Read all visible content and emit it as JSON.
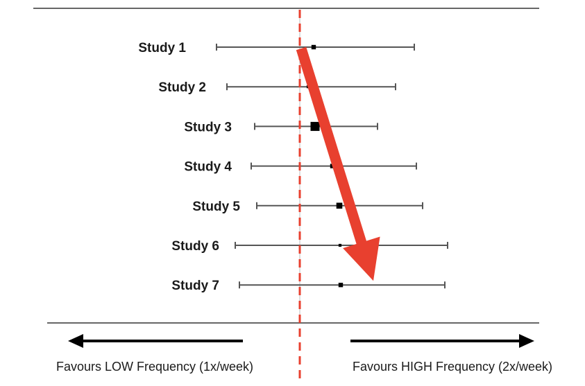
{
  "chart_data": {
    "type": "forest",
    "x_range": [
      -1.42,
      1.98
    ],
    "null_line_value": 0,
    "studies": [
      {
        "label": "Study 1",
        "estimate": 0.2,
        "ci_low": -1.2,
        "ci_high": 1.65,
        "marker_size": 2
      },
      {
        "label": "Study 2",
        "estimate": 0.12,
        "ci_low": -1.05,
        "ci_high": 1.38,
        "marker_size": 1
      },
      {
        "label": "Study 3",
        "estimate": 0.22,
        "ci_low": -0.65,
        "ci_high": 1.12,
        "marker_size": 5
      },
      {
        "label": "Study 4",
        "estimate": 0.47,
        "ci_low": -0.7,
        "ci_high": 1.68,
        "marker_size": 2
      },
      {
        "label": "Study 5",
        "estimate": 0.57,
        "ci_low": -0.62,
        "ci_high": 1.77,
        "marker_size": 3
      },
      {
        "label": "Study 6",
        "estimate": 0.58,
        "ci_low": -0.93,
        "ci_high": 2.13,
        "marker_size": 1
      },
      {
        "label": "Study 7",
        "estimate": 0.59,
        "ci_low": -0.87,
        "ci_high": 2.09,
        "marker_size": 2
      }
    ],
    "favours_left": "Favours LOW Frequency (1x/week)",
    "favours_right": "Favours HIGH Frequency (2x/week)",
    "trend_arrow": {
      "from_study": "Study 1",
      "to_study": "Study 7",
      "color": "#e8402f"
    },
    "colors": {
      "null_line": "#e8402f",
      "whisker": "#555555",
      "marker": "#000000",
      "rule": "#666666",
      "direction_arrow": "#000000"
    }
  }
}
